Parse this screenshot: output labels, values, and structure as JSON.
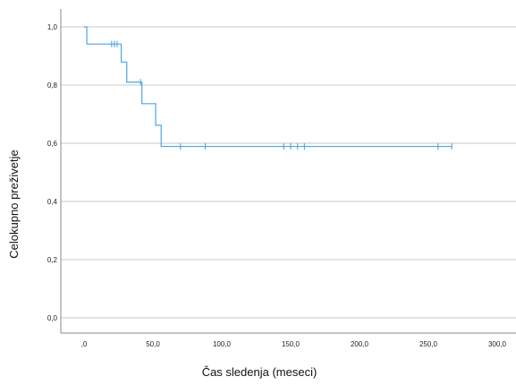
{
  "chart_data": {
    "type": "line",
    "subtype": "kaplan-meier-step",
    "xlabel": "Čas sledenja (meseci)",
    "ylabel": "Celokupno preživetje",
    "xlim": [
      -15,
      310
    ],
    "ylim": [
      -0.02,
      1.06
    ],
    "x_ticks": [
      0,
      50,
      100,
      150,
      200,
      250,
      300
    ],
    "x_tick_labels": [
      ",0",
      "50,0",
      "100,0",
      "150,0",
      "200,0",
      "250,0",
      "300,0"
    ],
    "y_ticks": [
      0,
      0.2,
      0.4,
      0.6,
      0.8,
      1.0
    ],
    "y_tick_labels": [
      "0,0",
      "0,2",
      "0,4",
      "0,6",
      "0,8",
      "1,0"
    ],
    "grid": "horizontal",
    "line_color": "#4da6e8",
    "series": [
      {
        "steps": [
          {
            "x": 0,
            "y": 1.0
          },
          {
            "x": 2,
            "y": 0.941
          },
          {
            "x": 26,
            "y": 0.941
          },
          {
            "x": 27,
            "y": 0.879
          },
          {
            "x": 31,
            "y": 0.879
          },
          {
            "x": 31,
            "y": 0.81
          },
          {
            "x": 42,
            "y": 0.81
          },
          {
            "x": 42,
            "y": 0.736
          },
          {
            "x": 52,
            "y": 0.736
          },
          {
            "x": 52,
            "y": 0.662
          },
          {
            "x": 56,
            "y": 0.662
          },
          {
            "x": 56,
            "y": 0.589
          },
          {
            "x": 267,
            "y": 0.589
          }
        ],
        "censored": [
          {
            "x": 20,
            "y": 0.941
          },
          {
            "x": 22,
            "y": 0.941
          },
          {
            "x": 24,
            "y": 0.941
          },
          {
            "x": 41,
            "y": 0.81
          },
          {
            "x": 70,
            "y": 0.589
          },
          {
            "x": 88,
            "y": 0.589
          },
          {
            "x": 145,
            "y": 0.589
          },
          {
            "x": 150,
            "y": 0.589
          },
          {
            "x": 155,
            "y": 0.589
          },
          {
            "x": 160,
            "y": 0.589
          },
          {
            "x": 257,
            "y": 0.589
          },
          {
            "x": 267,
            "y": 0.589
          }
        ]
      }
    ]
  }
}
